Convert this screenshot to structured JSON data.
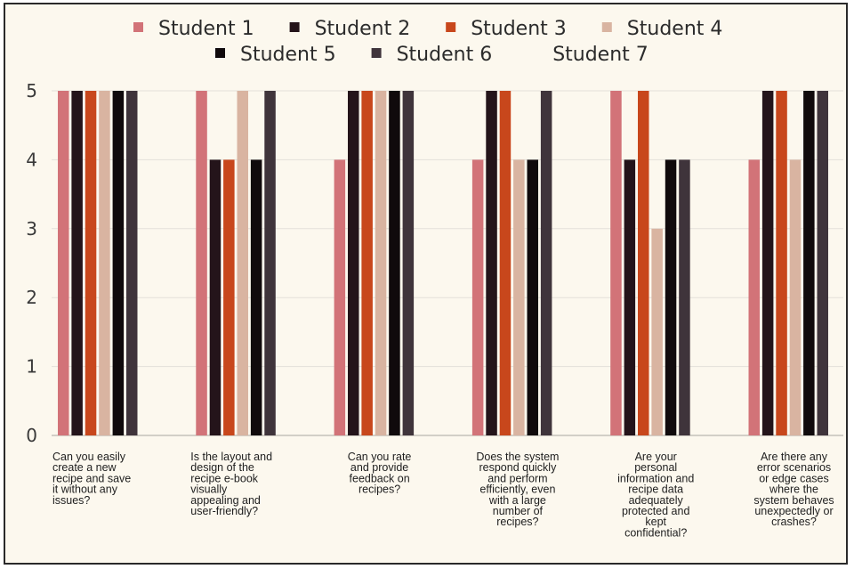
{
  "chart_data": {
    "type": "bar",
    "ylim": [
      0,
      5
    ],
    "yticks": [
      "0",
      "1",
      "2",
      "3",
      "4",
      "5"
    ],
    "grid": true,
    "legend_position": "top",
    "categories": [
      [
        "Can you easily",
        "create a new",
        "recipe and save",
        "it without any",
        "issues?"
      ],
      [
        "Is the layout and",
        "design of the",
        "recipe e-book",
        "visually",
        "appealing and",
        "user-friendly?"
      ],
      [
        "Can you rate",
        "and provide",
        "feedback on",
        "recipes?"
      ],
      [
        "Does the system",
        "respond quickly",
        "and perform",
        "efficiently, even",
        "with a large",
        "number of",
        "recipes?"
      ],
      [
        "Are your",
        "personal",
        "information and",
        "recipe data",
        "adequately",
        "protected and",
        "kept",
        "confidential?"
      ],
      [
        "Are there any",
        "error scenarios",
        "or edge cases",
        "where the",
        "system behaves",
        "unexpectedly or",
        "crashes?"
      ]
    ],
    "category_align": [
      "left",
      "left",
      "center",
      "center",
      "center",
      "center"
    ],
    "series": [
      {
        "name": "Student 1",
        "color": "#d27378",
        "values": [
          5,
          5,
          4,
          4,
          5,
          4
        ]
      },
      {
        "name": "Student 2",
        "color": "#24141a",
        "values": [
          5,
          4,
          5,
          5,
          4,
          5
        ]
      },
      {
        "name": "Student 3",
        "color": "#c8471c",
        "values": [
          5,
          4,
          5,
          5,
          5,
          5
        ]
      },
      {
        "name": "Student 4",
        "color": "#d9b4a1",
        "values": [
          5,
          5,
          5,
          4,
          3,
          4
        ]
      },
      {
        "name": "Student 5",
        "color": "#100a0c",
        "values": [
          5,
          4,
          5,
          4,
          4,
          5
        ]
      },
      {
        "name": "Student 6",
        "color": "#3f343b",
        "values": [
          5,
          5,
          5,
          5,
          4,
          5
        ]
      },
      {
        "name": "Student 7",
        "color": "#fcf8ee",
        "values": [
          0,
          0,
          0,
          0,
          0,
          0
        ]
      }
    ]
  }
}
